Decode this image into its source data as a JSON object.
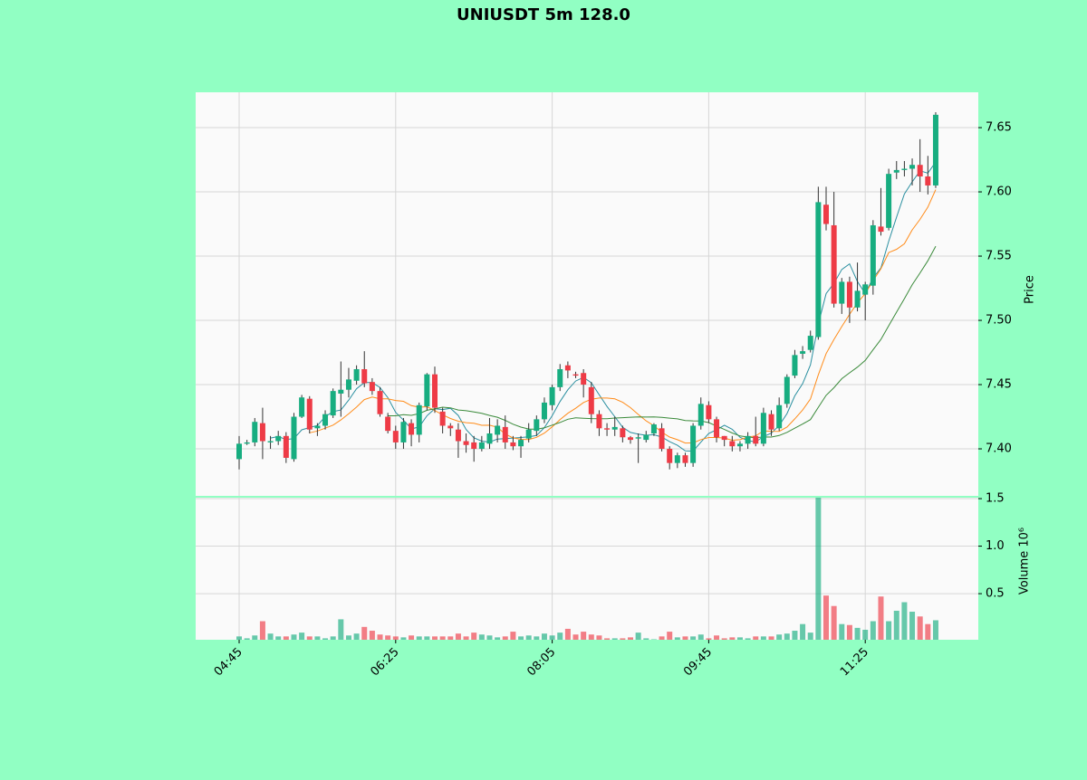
{
  "chart_data": {
    "type": "candlestick",
    "title": "UNIUSDT 5m 128.0",
    "categories": [
      "04:45",
      null,
      null,
      null,
      null,
      null,
      null,
      null,
      null,
      null,
      null,
      null,
      null,
      null,
      null,
      null,
      null,
      null,
      null,
      null,
      "06:25",
      null,
      null,
      null,
      null,
      null,
      null,
      null,
      null,
      null,
      null,
      null,
      null,
      null,
      null,
      null,
      null,
      null,
      null,
      null,
      "08:05",
      null,
      null,
      null,
      null,
      null,
      null,
      null,
      null,
      null,
      null,
      null,
      null,
      null,
      null,
      null,
      null,
      null,
      null,
      null,
      "09:45",
      null,
      null,
      null,
      null,
      null,
      null,
      null,
      null,
      null,
      null,
      null,
      null,
      null,
      null,
      null,
      null,
      null,
      null,
      null,
      "11:25",
      null,
      null,
      null,
      null,
      null,
      null,
      null,
      null,
      null
    ],
    "open": [
      7.392,
      7.404,
      7.405,
      7.42,
      7.405,
      7.406,
      7.41,
      7.392,
      7.425,
      7.439,
      7.416,
      7.418,
      7.426,
      7.443,
      7.446,
      7.453,
      7.462,
      7.452,
      7.445,
      7.425,
      7.414,
      7.405,
      7.42,
      7.411,
      7.433,
      7.458,
      7.429,
      7.418,
      7.415,
      7.406,
      7.405,
      7.4,
      7.404,
      7.411,
      7.417,
      7.405,
      7.402,
      7.408,
      7.414,
      7.423,
      7.434,
      7.448,
      7.465,
      7.458,
      7.459,
      7.448,
      7.427,
      7.416,
      7.415,
      7.416,
      7.409,
      7.408,
      7.407,
      7.412,
      7.416,
      7.4,
      7.389,
      7.395,
      7.389,
      7.418,
      7.434,
      7.423,
      7.41,
      7.406,
      7.402,
      7.404,
      7.41,
      7.404,
      7.427,
      7.416,
      7.435,
      7.457,
      7.474,
      7.477,
      7.487,
      7.59,
      7.574,
      7.513,
      7.53,
      7.51,
      7.52,
      7.527,
      7.573,
      7.572,
      7.615,
      7.617,
      7.618,
      7.621,
      7.612,
      7.605
    ],
    "high": [
      7.41,
      7.407,
      7.424,
      7.432,
      7.41,
      7.414,
      7.413,
      7.428,
      7.442,
      7.441,
      7.42,
      7.43,
      7.447,
      7.468,
      7.463,
      7.465,
      7.476,
      7.455,
      7.448,
      7.428,
      7.418,
      7.424,
      7.423,
      7.436,
      7.459,
      7.464,
      7.432,
      7.42,
      7.42,
      7.412,
      7.41,
      7.41,
      7.424,
      7.423,
      7.426,
      7.41,
      7.41,
      7.42,
      7.426,
      7.44,
      7.45,
      7.466,
      7.468,
      7.46,
      7.462,
      7.452,
      7.43,
      7.42,
      7.425,
      7.418,
      7.41,
      7.412,
      7.414,
      7.42,
      7.42,
      7.402,
      7.397,
      7.397,
      7.42,
      7.44,
      7.437,
      7.425,
      7.41,
      7.41,
      7.406,
      7.413,
      7.425,
      7.432,
      7.43,
      7.44,
      7.458,
      7.477,
      7.48,
      7.492,
      7.604,
      7.604,
      7.6,
      7.533,
      7.534,
      7.545,
      7.53,
      7.578,
      7.603,
      7.618,
      7.624,
      7.624,
      7.626,
      7.641,
      7.628,
      7.662
    ],
    "low": [
      7.384,
      7.403,
      7.402,
      7.392,
      7.4,
      7.403,
      7.389,
      7.39,
      7.424,
      7.412,
      7.41,
      7.415,
      7.424,
      7.425,
      7.44,
      7.45,
      7.448,
      7.442,
      7.425,
      7.412,
      7.4,
      7.4,
      7.402,
      7.405,
      7.43,
      7.428,
      7.412,
      7.41,
      7.393,
      7.397,
      7.39,
      7.398,
      7.4,
      7.405,
      7.4,
      7.399,
      7.393,
      7.405,
      7.41,
      7.42,
      7.43,
      7.445,
      7.455,
      7.455,
      7.44,
      7.42,
      7.41,
      7.41,
      7.41,
      7.405,
      7.404,
      7.389,
      7.405,
      7.41,
      7.398,
      7.384,
      7.385,
      7.386,
      7.386,
      7.415,
      7.42,
      7.405,
      7.402,
      7.398,
      7.398,
      7.4,
      7.402,
      7.402,
      7.41,
      7.414,
      7.432,
      7.455,
      7.47,
      7.475,
      7.485,
      7.57,
      7.51,
      7.505,
      7.498,
      7.507,
      7.5,
      7.52,
      7.566,
      7.57,
      7.61,
      7.612,
      7.605,
      7.6,
      7.598,
      7.603
    ],
    "close": [
      7.404,
      7.405,
      7.421,
      7.406,
      7.406,
      7.41,
      7.393,
      7.425,
      7.44,
      7.415,
      7.418,
      7.427,
      7.445,
      7.446,
      7.454,
      7.462,
      7.451,
      7.445,
      7.427,
      7.414,
      7.405,
      7.421,
      7.411,
      7.434,
      7.458,
      7.432,
      7.418,
      7.416,
      7.406,
      7.403,
      7.4,
      7.405,
      7.412,
      7.418,
      7.405,
      7.402,
      7.407,
      7.415,
      7.423,
      7.436,
      7.448,
      7.462,
      7.461,
      7.457,
      7.45,
      7.427,
      7.416,
      7.415,
      7.417,
      7.409,
      7.407,
      7.409,
      7.411,
      7.419,
      7.4,
      7.389,
      7.395,
      7.389,
      7.418,
      7.435,
      7.423,
      7.409,
      7.407,
      7.402,
      7.404,
      7.41,
      7.404,
      7.428,
      7.415,
      7.434,
      7.456,
      7.473,
      7.476,
      7.488,
      7.592,
      7.575,
      7.513,
      7.53,
      7.51,
      7.523,
      7.528,
      7.574,
      7.569,
      7.614,
      7.617,
      7.618,
      7.621,
      7.612,
      7.605,
      7.66
    ],
    "volume": [
      0.05,
      0.03,
      0.06,
      0.21,
      0.08,
      0.05,
      0.05,
      0.07,
      0.09,
      0.05,
      0.05,
      0.03,
      0.05,
      0.23,
      0.06,
      0.08,
      0.15,
      0.11,
      0.07,
      0.06,
      0.05,
      0.04,
      0.06,
      0.05,
      0.05,
      0.05,
      0.05,
      0.05,
      0.08,
      0.05,
      0.09,
      0.07,
      0.06,
      0.04,
      0.05,
      0.1,
      0.05,
      0.06,
      0.05,
      0.08,
      0.06,
      0.09,
      0.13,
      0.07,
      0.1,
      0.07,
      0.06,
      0.03,
      0.03,
      0.03,
      0.04,
      0.09,
      0.03,
      0.02,
      0.05,
      0.1,
      0.04,
      0.05,
      0.05,
      0.07,
      0.03,
      0.06,
      0.03,
      0.04,
      0.04,
      0.03,
      0.05,
      0.05,
      0.05,
      0.07,
      0.08,
      0.11,
      0.18,
      0.09,
      1.51,
      0.48,
      0.37,
      0.18,
      0.17,
      0.14,
      0.12,
      0.21,
      0.47,
      0.21,
      0.32,
      0.41,
      0.31,
      0.26,
      0.18,
      0.22
    ],
    "up_color": "#17ad80",
    "down_color": "#ee3b46",
    "mav": [
      5,
      10,
      20
    ],
    "mav_colors": [
      "#2a8fa0",
      "#ff8c1a",
      "#3a8a3a"
    ],
    "ylim": [
      7.3634,
      7.6775
    ],
    "yticks": [
      {
        "value": 7.4,
        "label": "7.40"
      },
      {
        "value": 7.45,
        "label": "7.45"
      },
      {
        "value": 7.5,
        "label": "7.50"
      },
      {
        "value": 7.55,
        "label": "7.55"
      },
      {
        "value": 7.6,
        "label": "7.60"
      },
      {
        "value": 7.65,
        "label": "7.65"
      }
    ],
    "ylabel": "Price",
    "volume_ylim": [
      0.015,
      1.51
    ],
    "volume_yticks": [
      0.5,
      {
        "value": 1.0,
        "label": "1.0"
      },
      1.5
    ],
    "volume_label": "Volume  10⁶",
    "grid": true
  }
}
